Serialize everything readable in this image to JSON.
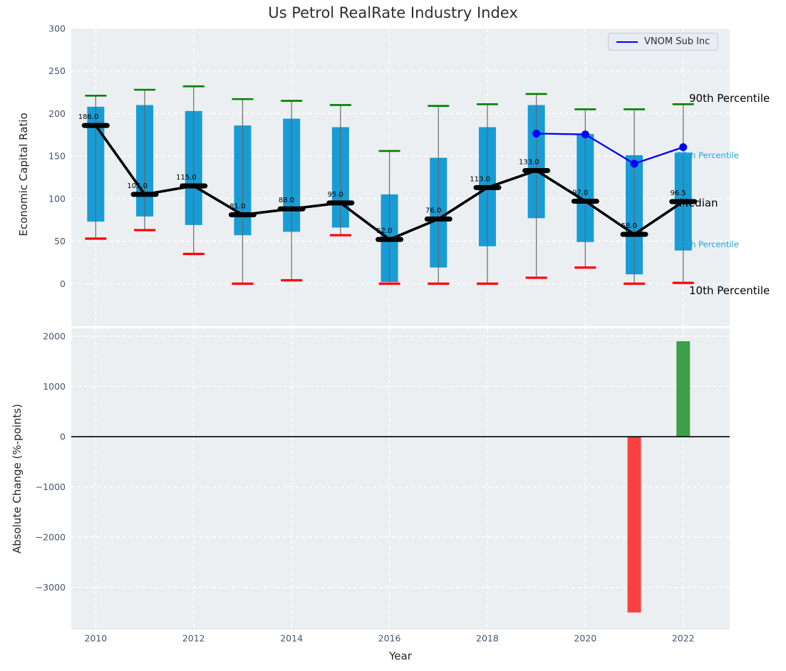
{
  "title": "Us Petrol RealRate Industry Index",
  "legend": {
    "label": "VNOM Sub Inc",
    "line_color": "#0000ff"
  },
  "annotations": {
    "p90": "90th Percentile",
    "p75": "75th Percentile",
    "median": "Median",
    "p25": "25th Percentile",
    "p10": "10th Percentile"
  },
  "colors": {
    "box": "#189cd6",
    "whisker": "#666666",
    "cap_top": "#008000",
    "cap_bottom": "#ff0000",
    "median_line": "#000000",
    "vnom_line": "#0000ff",
    "bar_negative": "#fb4141",
    "bar_positive": "#3da047",
    "plot_bg": "#eceff1",
    "grid": "#ffffff",
    "tick": "#44546f",
    "annotation_cyan": "#1ea6dc"
  },
  "chart_data": [
    {
      "type": "boxwhisker_with_median_line",
      "title": "Us Petrol RealRate Industry Index",
      "ylabel": "Economic Capital Ratio",
      "xlabel": "Year",
      "grid": "on",
      "legend_position": "upper right",
      "years": [
        2010,
        2011,
        2012,
        2013,
        2014,
        2015,
        2016,
        2017,
        2018,
        2019,
        2020,
        2021,
        2022
      ],
      "p90": [
        221,
        228,
        232,
        217,
        215,
        210,
        156,
        209,
        211,
        223,
        205,
        205,
        211
      ],
      "p75": [
        208,
        210,
        203,
        186,
        194,
        184,
        105,
        148,
        184,
        210,
        176,
        151,
        154
      ],
      "median": [
        186,
        105,
        115,
        81,
        88,
        95,
        52,
        76,
        113,
        133,
        97,
        58,
        96.5
      ],
      "p25": [
        73,
        79,
        69,
        57,
        61,
        66,
        2,
        19,
        44,
        77,
        49,
        11,
        39
      ],
      "p10": [
        53,
        63,
        35,
        0,
        4,
        57,
        0,
        0,
        0,
        7,
        19,
        0,
        1
      ],
      "median_labels": [
        "186.0",
        "105.0",
        "115.0",
        "81.0",
        "88.0",
        "95.0",
        "52.0",
        "76.0",
        "113.0",
        "133.0",
        "97.0",
        "58.0",
        "96.5"
      ],
      "series": [
        {
          "name": "VNOM Sub Inc",
          "x": [
            2019,
            2020,
            2021,
            2022
          ],
          "values": [
            176.5,
            175.5,
            141,
            160.5
          ]
        }
      ],
      "ylim": [
        -50,
        300
      ],
      "yticks": [
        300,
        250,
        200,
        150,
        100,
        50,
        0
      ],
      "xticks": [
        2010,
        2012,
        2014,
        2016,
        2018,
        2020,
        2022
      ],
      "xlim": [
        2009.5,
        2022.95
      ]
    },
    {
      "type": "bar",
      "ylabel": "Absolute Change (%-points)",
      "xlabel": "Year",
      "grid": "on",
      "categories": [
        2010,
        2011,
        2012,
        2013,
        2014,
        2015,
        2016,
        2017,
        2018,
        2019,
        2020,
        2021,
        2022
      ],
      "values": [
        0,
        0,
        0,
        0,
        0,
        0,
        0,
        0,
        0,
        0,
        0,
        -3500,
        1900
      ],
      "ylim": [
        -3843,
        2156
      ],
      "yticks": [
        2000,
        1000,
        0,
        -1000,
        -2000,
        -3000
      ],
      "xticks": [
        2010,
        2012,
        2014,
        2016,
        2018,
        2020,
        2022
      ],
      "xlim": [
        2009.5,
        2022.95
      ],
      "zero_line": true
    }
  ]
}
